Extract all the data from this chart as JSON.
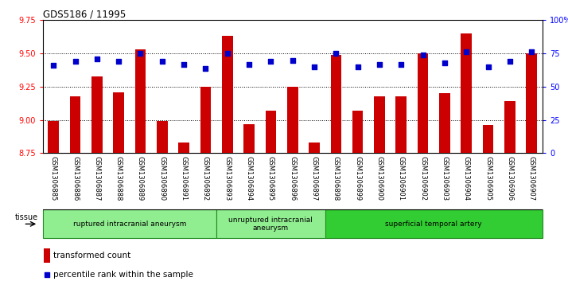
{
  "title": "GDS5186 / 11995",
  "samples": [
    "GSM1306885",
    "GSM1306886",
    "GSM1306887",
    "GSM1306888",
    "GSM1306889",
    "GSM1306890",
    "GSM1306891",
    "GSM1306892",
    "GSM1306893",
    "GSM1306894",
    "GSM1306895",
    "GSM1306896",
    "GSM1306897",
    "GSM1306898",
    "GSM1306899",
    "GSM1306900",
    "GSM1306901",
    "GSM1306902",
    "GSM1306903",
    "GSM1306904",
    "GSM1306905",
    "GSM1306906",
    "GSM1306907"
  ],
  "transformed_count": [
    8.99,
    9.18,
    9.33,
    9.21,
    9.53,
    8.99,
    8.83,
    9.25,
    9.63,
    8.97,
    9.07,
    9.25,
    8.83,
    9.49,
    9.07,
    9.18,
    9.18,
    9.5,
    9.2,
    9.65,
    8.96,
    9.14,
    9.5
  ],
  "percentile_rank": [
    66,
    69,
    71,
    69,
    75,
    69,
    67,
    64,
    75,
    67,
    69,
    70,
    65,
    75,
    65,
    67,
    67,
    74,
    68,
    76,
    65,
    69,
    76
  ],
  "groups": [
    {
      "label": "ruptured intracranial aneurysm",
      "start": 0,
      "end": 8
    },
    {
      "label": "unruptured intracranial\naneurysm",
      "start": 8,
      "end": 13
    },
    {
      "label": "superficial temporal artery",
      "start": 13,
      "end": 23
    }
  ],
  "group_colors": [
    "#90EE90",
    "#90EE90",
    "#32CD32"
  ],
  "ylim_left": [
    8.75,
    9.75
  ],
  "ylim_right": [
    0,
    100
  ],
  "yticks_left": [
    8.75,
    9.0,
    9.25,
    9.5,
    9.75
  ],
  "yticks_right": [
    0,
    25,
    50,
    75,
    100
  ],
  "bar_color": "#CC0000",
  "dot_color": "#0000CC",
  "plot_bg_color": "#FFFFFF",
  "xtick_bg_color": "#D3D3D3",
  "group_edge_color": "#228B22",
  "tissue_label": "tissue",
  "legend_bar_label": "transformed count",
  "legend_dot_label": "percentile rank within the sample"
}
